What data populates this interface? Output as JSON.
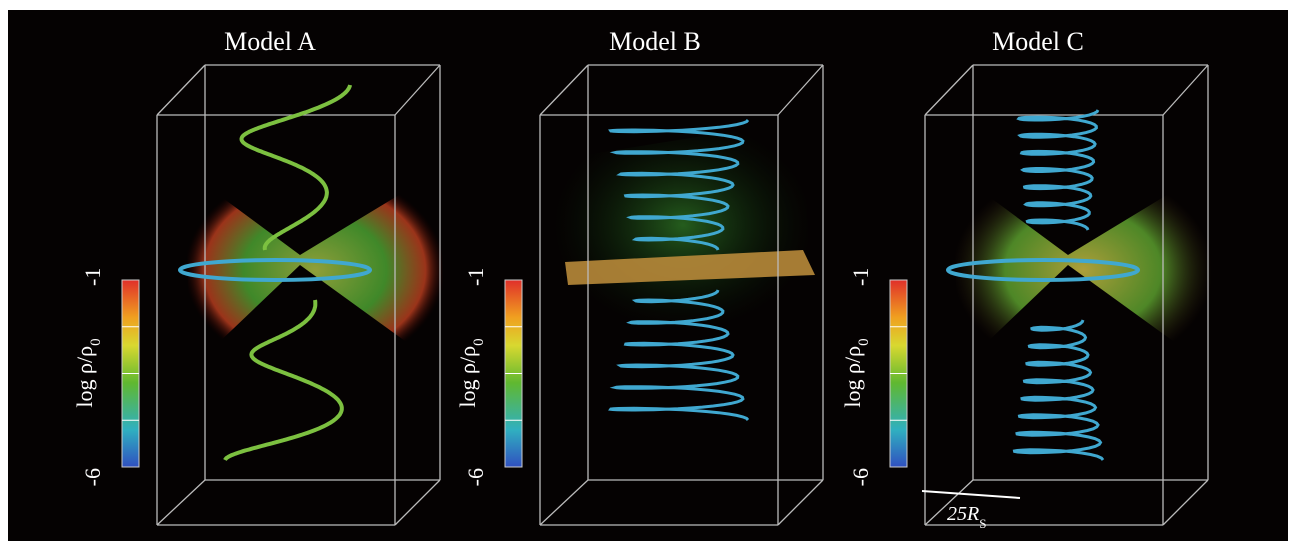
{
  "panels": [
    {
      "title": "Model A",
      "colorbar": {
        "label": "log ρ/ρ",
        "label_subscript": "0",
        "max": -1,
        "min": -6
      }
    },
    {
      "title": "Model B",
      "colorbar": {
        "label": "log ρ/ρ",
        "label_subscript": "0",
        "max": -1,
        "min": -6
      }
    },
    {
      "title": "Model C",
      "colorbar": {
        "label": "log ρ/ρ",
        "label_subscript": "0",
        "max": -1,
        "min": -6
      }
    }
  ],
  "scale_bar": {
    "label": "25R",
    "label_subscript": "S"
  }
}
